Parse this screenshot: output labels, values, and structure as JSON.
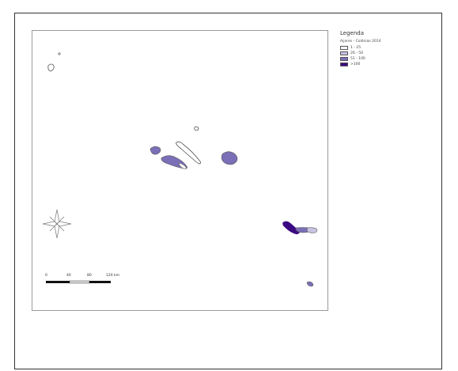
{
  "legend": {
    "title": "Legenda",
    "subtitle": "Açores - Colónias 2014",
    "classes": [
      {
        "label": "1 - 25",
        "color": "#ffffff"
      },
      {
        "label": "26 - 50",
        "color": "#c7c3e2"
      },
      {
        "label": "51 - 100",
        "color": "#7b6fb7"
      },
      {
        "label": ">100",
        "color": "#3b0a82"
      }
    ]
  },
  "scalebar": {
    "labels": [
      "0",
      "40",
      "80",
      "120 km"
    ]
  },
  "north_arrow": {
    "icon": "compass-rose-icon"
  },
  "colors": {
    "frame": "#9a9a9a",
    "outline": "#555555"
  }
}
